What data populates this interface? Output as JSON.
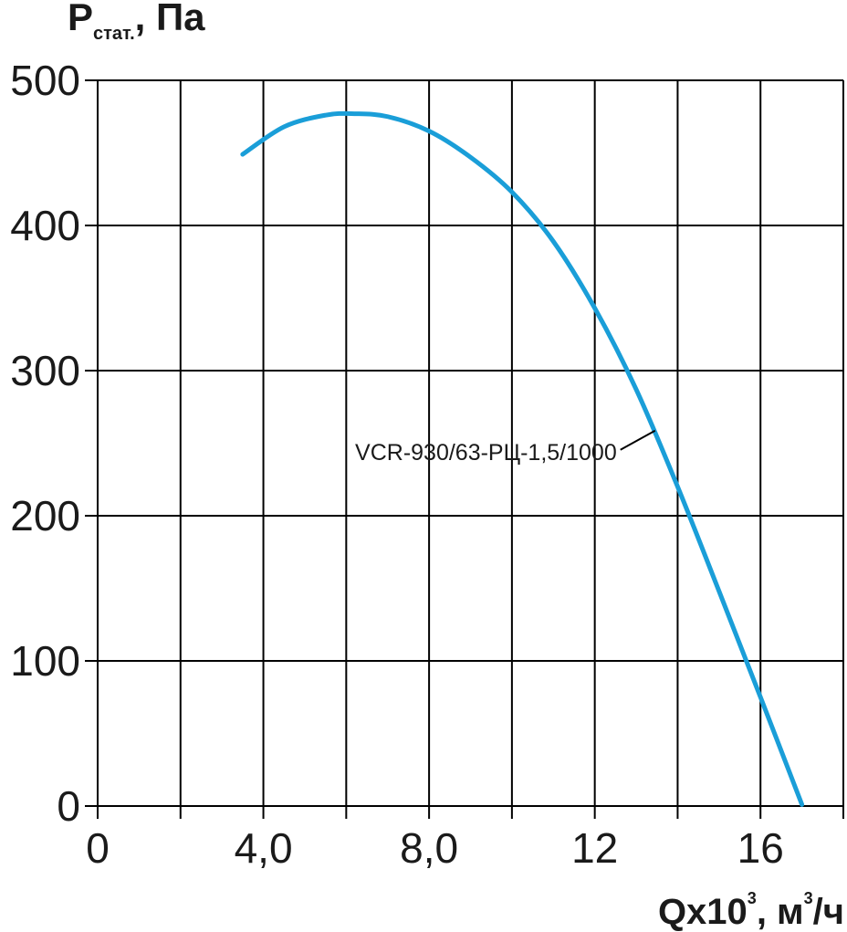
{
  "chart_data": {
    "type": "line",
    "ylabel": {
      "main": "P",
      "sub": "стат.",
      "rest": ", Па"
    },
    "xlabel": {
      "main": "Qx10",
      "sup1": "3",
      "mid": ", м",
      "sup2": "3",
      "rest": "/ч"
    },
    "x_ticks": [
      {
        "value": 0,
        "label": "0"
      },
      {
        "value": 4,
        "label": "4,0"
      },
      {
        "value": 8,
        "label": "8,0"
      },
      {
        "value": 12,
        "label": "12"
      },
      {
        "value": 16,
        "label": "16"
      }
    ],
    "y_ticks": [
      {
        "value": 0,
        "label": "0"
      },
      {
        "value": 100,
        "label": "100"
      },
      {
        "value": 200,
        "label": "200"
      },
      {
        "value": 300,
        "label": "300"
      },
      {
        "value": 400,
        "label": "400"
      },
      {
        "value": 500,
        "label": "500"
      }
    ],
    "xlim": [
      0,
      18
    ],
    "ylim": [
      0,
      500
    ],
    "grid_x_step": 2,
    "grid_y_step": 100,
    "series": [
      {
        "name": "VCR-930/63-РЦ-1,5/1000",
        "color": "#1a9ed8",
        "x": [
          3.5,
          4.5,
          5.5,
          6.2,
          7.0,
          8.0,
          9.0,
          10.0,
          11.0,
          12.0,
          13.0,
          14.0,
          15.0,
          16.0,
          17.0
        ],
        "y": [
          449,
          468,
          476,
          477,
          475,
          465,
          447,
          423,
          389,
          343,
          287,
          220,
          148,
          75,
          1
        ]
      }
    ],
    "annotation": {
      "text": "VCR-930/63-РЦ-1,5/1000",
      "x": 13.5,
      "y": 258
    }
  }
}
